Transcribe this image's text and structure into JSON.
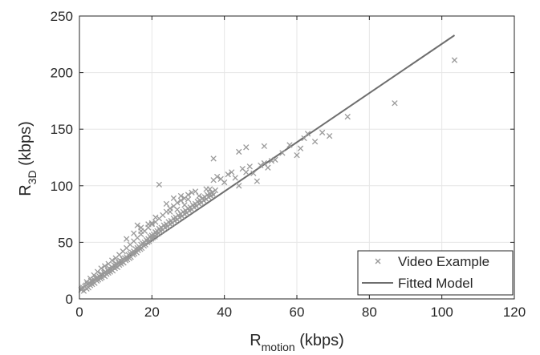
{
  "chart_data": {
    "type": "scatter",
    "xlabel": {
      "base": "R",
      "sub": "motion",
      "rest": " (kbps)"
    },
    "ylabel": {
      "base": "R",
      "sub": "3D",
      "rest": " (kbps)"
    },
    "xlim": [
      0,
      120
    ],
    "ylim": [
      0,
      250
    ],
    "xticks": [
      0,
      20,
      40,
      60,
      80,
      100,
      120
    ],
    "yticks": [
      0,
      50,
      100,
      150,
      200,
      250
    ],
    "grid": true,
    "legend_position": "bottom-right",
    "colors": {
      "points": "#9a9a9a",
      "fit": "#6e6e6e",
      "axis": "#262626",
      "grid": "#e6e6e6"
    },
    "series": [
      {
        "name": "Video Example",
        "kind": "scatter",
        "marker": "x",
        "points": [
          [
            0.5,
            8
          ],
          [
            0.8,
            9
          ],
          [
            1,
            10
          ],
          [
            1.2,
            7
          ],
          [
            1.5,
            11
          ],
          [
            1.8,
            12
          ],
          [
            2,
            9
          ],
          [
            2.2,
            13
          ],
          [
            2.5,
            10
          ],
          [
            2.8,
            14
          ],
          [
            3,
            12
          ],
          [
            3.2,
            16
          ],
          [
            3.5,
            13
          ],
          [
            3.8,
            15
          ],
          [
            4,
            17
          ],
          [
            4.2,
            14
          ],
          [
            4.5,
            18
          ],
          [
            4.8,
            16
          ],
          [
            5,
            19
          ],
          [
            5.2,
            17
          ],
          [
            5.5,
            20
          ],
          [
            5.8,
            18
          ],
          [
            6,
            22
          ],
          [
            6.2,
            19
          ],
          [
            6.5,
            21
          ],
          [
            6.8,
            23
          ],
          [
            7,
            20
          ],
          [
            7.2,
            24
          ],
          [
            7.5,
            22
          ],
          [
            7.8,
            25
          ],
          [
            8,
            23
          ],
          [
            8.2,
            27
          ],
          [
            8.5,
            24
          ],
          [
            8.8,
            26
          ],
          [
            9,
            28
          ],
          [
            9.2,
            25
          ],
          [
            9.5,
            30
          ],
          [
            9.8,
            27
          ],
          [
            10,
            29
          ],
          [
            10.2,
            31
          ],
          [
            10.5,
            28
          ],
          [
            10.8,
            32
          ],
          [
            11,
            30
          ],
          [
            11.2,
            34
          ],
          [
            11.5,
            31
          ],
          [
            11.8,
            33
          ],
          [
            12,
            35
          ],
          [
            12.2,
            32
          ],
          [
            12.5,
            36
          ],
          [
            12.8,
            34
          ],
          [
            13,
            37
          ],
          [
            13.2,
            35
          ],
          [
            13.5,
            39
          ],
          [
            13.8,
            36
          ],
          [
            14,
            40
          ],
          [
            14.2,
            37
          ],
          [
            14.5,
            41
          ],
          [
            14.8,
            39
          ],
          [
            15,
            42
          ],
          [
            15.2,
            40
          ],
          [
            15.5,
            44
          ],
          [
            15.8,
            41
          ],
          [
            16,
            45
          ],
          [
            16.2,
            43
          ],
          [
            16.5,
            46
          ],
          [
            16.8,
            44
          ],
          [
            17,
            48
          ],
          [
            17.2,
            45
          ],
          [
            17.5,
            49
          ],
          [
            17.8,
            47
          ],
          [
            18,
            50
          ],
          [
            18.2,
            48
          ],
          [
            18.5,
            52
          ],
          [
            18.8,
            50
          ],
          [
            19,
            53
          ],
          [
            19.2,
            51
          ],
          [
            19.5,
            55
          ],
          [
            19.8,
            53
          ],
          [
            20,
            56
          ],
          [
            20.2,
            54
          ],
          [
            20.5,
            57
          ],
          [
            20.8,
            55
          ],
          [
            21,
            59
          ],
          [
            21.2,
            57
          ],
          [
            21.5,
            60
          ],
          [
            21.8,
            58
          ],
          [
            22,
            62
          ],
          [
            22.3,
            60
          ],
          [
            22.6,
            63
          ],
          [
            23,
            61
          ],
          [
            23.3,
            65
          ],
          [
            23.6,
            63
          ],
          [
            24,
            66
          ],
          [
            24.3,
            64
          ],
          [
            24.6,
            68
          ],
          [
            25,
            66
          ],
          [
            25.3,
            69
          ],
          [
            25.6,
            67
          ],
          [
            26,
            71
          ],
          [
            26.3,
            69
          ],
          [
            26.6,
            72
          ],
          [
            27,
            70
          ],
          [
            27.3,
            74
          ],
          [
            27.6,
            72
          ],
          [
            28,
            75
          ],
          [
            28.3,
            73
          ],
          [
            28.6,
            77
          ],
          [
            29,
            75
          ],
          [
            29.3,
            78
          ],
          [
            29.6,
            76
          ],
          [
            30,
            80
          ],
          [
            30.3,
            78
          ],
          [
            30.6,
            81
          ],
          [
            31,
            79
          ],
          [
            31.3,
            83
          ],
          [
            31.6,
            81
          ],
          [
            32,
            84
          ],
          [
            32.3,
            82
          ],
          [
            32.6,
            86
          ],
          [
            33,
            84
          ],
          [
            33.3,
            87
          ],
          [
            33.6,
            85
          ],
          [
            34,
            89
          ],
          [
            34.3,
            87
          ],
          [
            34.6,
            90
          ],
          [
            35,
            88
          ],
          [
            35.3,
            92
          ],
          [
            35.6,
            90
          ],
          [
            36,
            93
          ],
          [
            36.3,
            91
          ],
          [
            36.6,
            94
          ],
          [
            37,
            92
          ],
          [
            37.5,
            96
          ],
          [
            2,
            15
          ],
          [
            3,
            18
          ],
          [
            4,
            21
          ],
          [
            5,
            24
          ],
          [
            6,
            27
          ],
          [
            7,
            29
          ],
          [
            8,
            31
          ],
          [
            9,
            34
          ],
          [
            10,
            36
          ],
          [
            11,
            39
          ],
          [
            12,
            42
          ],
          [
            13,
            45
          ],
          [
            14,
            48
          ],
          [
            15,
            51
          ],
          [
            16,
            54
          ],
          [
            17,
            57
          ],
          [
            18,
            60
          ],
          [
            19,
            63
          ],
          [
            20,
            66
          ],
          [
            21,
            68
          ],
          [
            22,
            71
          ],
          [
            23,
            74
          ],
          [
            24,
            77
          ],
          [
            25,
            80
          ],
          [
            26,
            82
          ],
          [
            27,
            85
          ],
          [
            28,
            87
          ],
          [
            29,
            89
          ],
          [
            30,
            92
          ],
          [
            31,
            94
          ],
          [
            13,
            53
          ],
          [
            15,
            58
          ],
          [
            17,
            63
          ],
          [
            19,
            66
          ],
          [
            21,
            72
          ],
          [
            24,
            84
          ],
          [
            26,
            89
          ],
          [
            28,
            91
          ],
          [
            30,
            88
          ],
          [
            32,
            95
          ],
          [
            22,
            101
          ],
          [
            17,
            60
          ],
          [
            16,
            65
          ],
          [
            20,
            67
          ],
          [
            25,
            77
          ],
          [
            27,
            79
          ],
          [
            29,
            83
          ],
          [
            33,
            91
          ],
          [
            35,
            97
          ],
          [
            36,
            97
          ],
          [
            37,
            105
          ],
          [
            38,
            108
          ],
          [
            39,
            106
          ],
          [
            40,
            103
          ],
          [
            41,
            110
          ],
          [
            42,
            112
          ],
          [
            43,
            107
          ],
          [
            44,
            100
          ],
          [
            45,
            115
          ],
          [
            46,
            112
          ],
          [
            47,
            117
          ],
          [
            48,
            111
          ],
          [
            49,
            104
          ],
          [
            50,
            118
          ],
          [
            51,
            120
          ],
          [
            52,
            116
          ],
          [
            53,
            122
          ],
          [
            54,
            123
          ],
          [
            37,
            124
          ],
          [
            44,
            130
          ],
          [
            46,
            134
          ],
          [
            51,
            135
          ],
          [
            56,
            129
          ],
          [
            58,
            136
          ],
          [
            60,
            127
          ],
          [
            61,
            133
          ],
          [
            62,
            142
          ],
          [
            63,
            146
          ],
          [
            65,
            139
          ],
          [
            67,
            147
          ],
          [
            69,
            144
          ],
          [
            74,
            161
          ],
          [
            87,
            173
          ],
          [
            103.5,
            211
          ]
        ]
      },
      {
        "name": "Fitted Model",
        "kind": "line",
        "points": [
          [
            0,
            8
          ],
          [
            103.5,
            233
          ]
        ]
      }
    ]
  }
}
